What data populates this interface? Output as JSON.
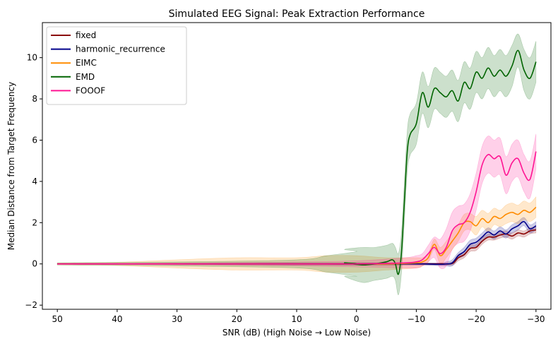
{
  "chart_data": {
    "type": "line",
    "title": "Simulated EEG Signal: Peak Extraction Performance",
    "xlabel": "SNR (dB) (High Noise → Low Noise)",
    "ylabel": "Median Distance from Target Frequency",
    "xlim": [
      52.5,
      -32.5
    ],
    "ylim": [
      -2.2,
      11.7
    ],
    "x_inverted": true,
    "xticks": [
      50,
      40,
      30,
      20,
      10,
      0,
      -10,
      -20,
      -30
    ],
    "xtick_labels": [
      "50",
      "40",
      "30",
      "20",
      "10",
      "0",
      "−10",
      "−20",
      "−30"
    ],
    "yticks": [
      -2,
      0,
      2,
      4,
      6,
      8,
      10
    ],
    "ytick_labels": [
      "−2",
      "0",
      "2",
      "4",
      "6",
      "8",
      "10"
    ],
    "grid": false,
    "legend_position": "top-left",
    "series": [
      {
        "name": "fixed",
        "color": "#8b0000",
        "points": [
          [
            50,
            0
          ],
          [
            30,
            0
          ],
          [
            10,
            0
          ],
          [
            0,
            0
          ],
          [
            -10,
            0
          ],
          [
            -14,
            0
          ],
          [
            -16,
            0.02
          ],
          [
            -17,
            0.3
          ],
          [
            -18,
            0.45
          ],
          [
            -19,
            0.75
          ],
          [
            -20,
            0.8
          ],
          [
            -21,
            1.1
          ],
          [
            -22,
            1.3
          ],
          [
            -23,
            1.3
          ],
          [
            -24,
            1.4
          ],
          [
            -25,
            1.45
          ],
          [
            -26,
            1.35
          ],
          [
            -27,
            1.5
          ],
          [
            -28,
            1.45
          ],
          [
            -29,
            1.6
          ],
          [
            -30,
            1.65
          ]
        ],
        "band": [
          [
            50,
            0.02
          ],
          [
            30,
            0.03
          ],
          [
            10,
            0.05
          ],
          [
            0,
            0.05
          ],
          [
            -10,
            0.05
          ],
          [
            -14,
            0.05
          ],
          [
            -16,
            0.1
          ],
          [
            -17,
            0.45
          ],
          [
            -18,
            0.6
          ],
          [
            -19,
            0.9
          ],
          [
            -20,
            0.95
          ],
          [
            -21,
            1.25
          ],
          [
            -22,
            1.45
          ],
          [
            -23,
            1.45
          ],
          [
            -24,
            1.55
          ],
          [
            -25,
            1.6
          ],
          [
            -26,
            1.5
          ],
          [
            -27,
            1.65
          ],
          [
            -28,
            1.6
          ],
          [
            -29,
            1.75
          ],
          [
            -30,
            1.8
          ]
        ]
      },
      {
        "name": "harmonic_recurrence",
        "color": "#00008b",
        "points": [
          [
            50,
            0
          ],
          [
            30,
            0
          ],
          [
            10,
            0
          ],
          [
            0,
            0
          ],
          [
            -10,
            0
          ],
          [
            -14,
            -0.02
          ],
          [
            -15,
            0
          ],
          [
            -16,
            0.05
          ],
          [
            -17,
            0.4
          ],
          [
            -18,
            0.6
          ],
          [
            -19,
            0.95
          ],
          [
            -20,
            1.05
          ],
          [
            -21,
            1.3
          ],
          [
            -22,
            1.55
          ],
          [
            -23,
            1.4
          ],
          [
            -24,
            1.6
          ],
          [
            -25,
            1.45
          ],
          [
            -26,
            1.7
          ],
          [
            -27,
            1.85
          ],
          [
            -28,
            2.05
          ],
          [
            -29,
            1.7
          ],
          [
            -30,
            1.85
          ]
        ],
        "band": [
          [
            50,
            0.02
          ],
          [
            30,
            0.03
          ],
          [
            10,
            0.05
          ],
          [
            0,
            0.05
          ],
          [
            -10,
            0.05
          ],
          [
            -14,
            0.05
          ],
          [
            -15,
            0.1
          ],
          [
            -16,
            0.2
          ],
          [
            -17,
            0.55
          ],
          [
            -18,
            0.8
          ],
          [
            -19,
            1.15
          ],
          [
            -20,
            1.25
          ],
          [
            -21,
            1.5
          ],
          [
            -22,
            1.75
          ],
          [
            -23,
            1.6
          ],
          [
            -24,
            1.8
          ],
          [
            -25,
            1.65
          ],
          [
            -26,
            1.9
          ],
          [
            -27,
            2.05
          ],
          [
            -28,
            2.25
          ],
          [
            -29,
            1.9
          ],
          [
            -30,
            2.05
          ]
        ]
      },
      {
        "name": "EIMC",
        "color": "#ff8c00",
        "points": [
          [
            50,
            0
          ],
          [
            40,
            0
          ],
          [
            30,
            0
          ],
          [
            20,
            0
          ],
          [
            10,
            0
          ],
          [
            5,
            0
          ],
          [
            0,
            0
          ],
          [
            -5,
            0
          ],
          [
            -10,
            0.05
          ],
          [
            -11,
            0.1
          ],
          [
            -12,
            0.3
          ],
          [
            -13,
            0.95
          ],
          [
            -14,
            0.4
          ],
          [
            -15,
            0.7
          ],
          [
            -16,
            1.1
          ],
          [
            -17,
            1.5
          ],
          [
            -18,
            2.0
          ],
          [
            -19,
            2.05
          ],
          [
            -20,
            1.85
          ],
          [
            -21,
            2.2
          ],
          [
            -22,
            2.0
          ],
          [
            -23,
            2.3
          ],
          [
            -24,
            2.2
          ],
          [
            -25,
            2.4
          ],
          [
            -26,
            2.5
          ],
          [
            -27,
            2.4
          ],
          [
            -28,
            2.6
          ],
          [
            -29,
            2.5
          ],
          [
            -30,
            2.75
          ]
        ],
        "band": [
          [
            50,
            0.05
          ],
          [
            40,
            0.08
          ],
          [
            30,
            0.2
          ],
          [
            20,
            0.3
          ],
          [
            10,
            0.3
          ],
          [
            5,
            0.4
          ],
          [
            0,
            0.4
          ],
          [
            -5,
            0.3
          ],
          [
            -10,
            0.3
          ],
          [
            -11,
            0.3
          ],
          [
            -12,
            0.5
          ],
          [
            -13,
            1.2
          ],
          [
            -14,
            0.8
          ],
          [
            -15,
            1.1
          ],
          [
            -16,
            1.5
          ],
          [
            -17,
            1.9
          ],
          [
            -18,
            2.4
          ],
          [
            -19,
            2.45
          ],
          [
            -20,
            2.3
          ],
          [
            -21,
            2.6
          ],
          [
            -22,
            2.45
          ],
          [
            -23,
            2.7
          ],
          [
            -24,
            2.6
          ],
          [
            -25,
            2.85
          ],
          [
            -26,
            2.95
          ],
          [
            -27,
            2.85
          ],
          [
            -28,
            3.05
          ],
          [
            -29,
            2.95
          ],
          [
            -30,
            3.25
          ]
        ]
      },
      {
        "name": "EMD",
        "color": "#006400",
        "points": [
          [
            50,
            0
          ],
          [
            30,
            0
          ],
          [
            10,
            0
          ],
          [
            5,
            0
          ],
          [
            0,
            0
          ],
          [
            2,
            0.05
          ],
          [
            -1,
            -0.05
          ],
          [
            -3,
            0
          ],
          [
            -5,
            0.1
          ],
          [
            -6,
            0.2
          ],
          [
            -6.5,
            0
          ],
          [
            -7,
            -0.5
          ],
          [
            -7.5,
            0.5
          ],
          [
            -8,
            3
          ],
          [
            -8.5,
            5.5
          ],
          [
            -9,
            6.3
          ],
          [
            -10,
            6.8
          ],
          [
            -11,
            8.3
          ],
          [
            -12,
            7.6
          ],
          [
            -13,
            8.5
          ],
          [
            -14,
            8.3
          ],
          [
            -15,
            8.1
          ],
          [
            -16,
            8.4
          ],
          [
            -17,
            7.9
          ],
          [
            -18,
            8.8
          ],
          [
            -19,
            8.5
          ],
          [
            -20,
            9.3
          ],
          [
            -21,
            9.0
          ],
          [
            -22,
            9.5
          ],
          [
            -23,
            9.1
          ],
          [
            -24,
            9.4
          ],
          [
            -25,
            9.1
          ],
          [
            -26,
            9.6
          ],
          [
            -27,
            10.35
          ],
          [
            -28,
            9.4
          ],
          [
            -29,
            9.0
          ],
          [
            -30,
            9.8
          ]
        ],
        "band": [
          [
            50,
            0.05
          ],
          [
            30,
            0.1
          ],
          [
            10,
            0.2
          ],
          [
            5,
            0.4
          ],
          [
            2,
            0.6
          ],
          [
            0,
            0.7
          ],
          [
            -1,
            0.8
          ],
          [
            -3,
            0.8
          ],
          [
            -5,
            0.9
          ],
          [
            -6,
            1.0
          ],
          [
            -6.5,
            0.8
          ],
          [
            -7,
            0.5
          ],
          [
            -7.5,
            1.5
          ],
          [
            -8,
            4.0
          ],
          [
            -8.5,
            6.5
          ],
          [
            -9,
            7.3
          ],
          [
            -10,
            7.8
          ],
          [
            -11,
            9.3
          ],
          [
            -12,
            8.6
          ],
          [
            -13,
            9.5
          ],
          [
            -14,
            9.3
          ],
          [
            -15,
            9.1
          ],
          [
            -16,
            9.4
          ],
          [
            -17,
            8.9
          ],
          [
            -18,
            9.8
          ],
          [
            -19,
            9.5
          ],
          [
            -20,
            10.3
          ],
          [
            -21,
            10.0
          ],
          [
            -22,
            10.5
          ],
          [
            -23,
            10.1
          ],
          [
            -24,
            10.4
          ],
          [
            -25,
            10.1
          ],
          [
            -26,
            10.6
          ],
          [
            -27,
            11.15
          ],
          [
            -28,
            10.4
          ],
          [
            -29,
            10.0
          ],
          [
            -30,
            10.8
          ]
        ]
      },
      {
        "name": "FOOOF",
        "color": "#ff1493",
        "points": [
          [
            50,
            0
          ],
          [
            30,
            0
          ],
          [
            10,
            0
          ],
          [
            0,
            0
          ],
          [
            -8,
            0.05
          ],
          [
            -10,
            0.1
          ],
          [
            -11,
            0.2
          ],
          [
            -12,
            0.5
          ],
          [
            -13,
            0.8
          ],
          [
            -14,
            0.5
          ],
          [
            -15,
            0.8
          ],
          [
            -16,
            1.6
          ],
          [
            -17,
            1.9
          ],
          [
            -18,
            2.0
          ],
          [
            -19,
            2.5
          ],
          [
            -20,
            3.5
          ],
          [
            -21,
            4.8
          ],
          [
            -22,
            5.3
          ],
          [
            -23,
            5.1
          ],
          [
            -24,
            5.2
          ],
          [
            -25,
            4.3
          ],
          [
            -26,
            4.9
          ],
          [
            -27,
            5.1
          ],
          [
            -28,
            4.4
          ],
          [
            -29,
            4.1
          ],
          [
            -30,
            5.45
          ]
        ],
        "band": [
          [
            50,
            0.03
          ],
          [
            30,
            0.05
          ],
          [
            10,
            0.1
          ],
          [
            0,
            0.15
          ],
          [
            -8,
            0.3
          ],
          [
            -10,
            0.4
          ],
          [
            -11,
            0.5
          ],
          [
            -12,
            0.9
          ],
          [
            -13,
            1.3
          ],
          [
            -14,
            1.2
          ],
          [
            -15,
            1.7
          ],
          [
            -16,
            2.5
          ],
          [
            -17,
            2.8
          ],
          [
            -18,
            2.9
          ],
          [
            -19,
            3.4
          ],
          [
            -20,
            4.4
          ],
          [
            -21,
            5.7
          ],
          [
            -22,
            6.2
          ],
          [
            -23,
            6.0
          ],
          [
            -24,
            6.1
          ],
          [
            -25,
            5.2
          ],
          [
            -26,
            5.8
          ],
          [
            -27,
            6.0
          ],
          [
            -28,
            5.3
          ],
          [
            -29,
            5.0
          ],
          [
            -30,
            6.3
          ]
        ]
      }
    ]
  }
}
